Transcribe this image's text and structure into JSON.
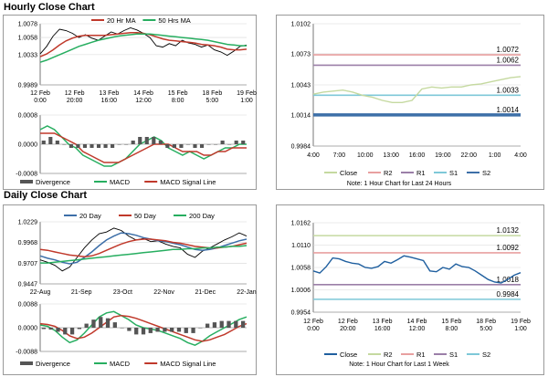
{
  "hourly_section": {
    "title": "Hourly Close Chart"
  },
  "daily_section": {
    "title": "Daily Close Chart"
  },
  "chart_data": [
    {
      "id": "hourly_price",
      "type": "line",
      "ylim": [
        0.9989,
        1.0078
      ],
      "yticks": [
        "1.0078",
        "1.0058",
        "1.0033",
        "0.9989"
      ],
      "ytick_values": [
        1.0078,
        1.0058,
        1.0033,
        0.9989
      ],
      "x_labels": [
        "12 Feb\n0:00",
        "12 Feb\n20:00",
        "13 Feb\n16:00",
        "14 Feb\n12:00",
        "15 Feb\n8:00",
        "18 Feb\n5:00",
        "19 Feb\n1:00"
      ],
      "legend": [
        {
          "name": "20 Hr MA",
          "color": "#c0392b"
        },
        {
          "name": "50 Hrs MA",
          "color": "#27ae60"
        }
      ],
      "series": [
        {
          "name": "Close",
          "color": "#000000",
          "values": [
            1.0034,
            1.0045,
            1.006,
            1.007,
            1.0068,
            1.0064,
            1.0058,
            1.0062,
            1.0057,
            1.0054,
            1.006,
            1.0066,
            1.0063,
            1.0068,
            1.0072,
            1.0069,
            1.0064,
            1.0058,
            1.0046,
            1.0044,
            1.0049,
            1.0046,
            1.0054,
            1.005,
            1.0048,
            1.0044,
            1.0047,
            1.004,
            1.0037,
            1.0032,
            1.0038,
            1.0045,
            1.0047
          ]
        },
        {
          "name": "20 Hr MA",
          "color": "#c0392b",
          "values": [
            1.003,
            1.0034,
            1.004,
            1.0047,
            1.0053,
            1.0057,
            1.006,
            1.0061,
            1.0061,
            1.0061,
            1.0061,
            1.0062,
            1.0063,
            1.0064,
            1.0065,
            1.0065,
            1.0064,
            1.0062,
            1.0059,
            1.0056,
            1.0054,
            1.0053,
            1.0052,
            1.0051,
            1.005,
            1.0048,
            1.0047,
            1.0046,
            1.0044,
            1.0041,
            1.004,
            1.004,
            1.0041
          ]
        },
        {
          "name": "50 Hrs MA",
          "color": "#27ae60",
          "values": [
            1.0022,
            1.0025,
            1.0029,
            1.0033,
            1.0037,
            1.0041,
            1.0045,
            1.0048,
            1.0051,
            1.0054,
            1.0056,
            1.0058,
            1.006,
            1.0061,
            1.0062,
            1.0063,
            1.0063,
            1.0063,
            1.0062,
            1.0061,
            1.006,
            1.0059,
            1.0058,
            1.0057,
            1.0056,
            1.0055,
            1.0054,
            1.0052,
            1.005,
            1.0048,
            1.0047,
            1.0046,
            1.0046
          ]
        }
      ]
    },
    {
      "id": "hourly_macd",
      "type": "line",
      "ylim": [
        -0.0008,
        0.0008
      ],
      "yticks": [
        "0.0008",
        "0.0000",
        "-0.0008"
      ],
      "ytick_values": [
        0.0008,
        0.0,
        -0.0008
      ],
      "legend": [
        {
          "name": "Divergence",
          "color": "#555555"
        },
        {
          "name": "MACD",
          "color": "#27ae60"
        },
        {
          "name": "MACD Signal Line",
          "color": "#c0392b"
        }
      ],
      "series": [
        {
          "name": "MACD",
          "color": "#27ae60",
          "values": [
            0.0004,
            0.0005,
            0.0004,
            0.0002,
            0.0,
            -0.0001,
            -0.0003,
            -0.0004,
            -0.0005,
            -0.0006,
            -0.0006,
            -0.0005,
            -0.0004,
            -0.0002,
            0.0,
            0.0001,
            0.0002,
            0.0001,
            -0.0001,
            -0.0002,
            -0.0003,
            -0.0002,
            -0.0003,
            -0.0004,
            -0.0003,
            -0.0002,
            -0.0001,
            -0.0001,
            0.0,
            0.0
          ]
        },
        {
          "name": "MACD Signal Line",
          "color": "#c0392b",
          "values": [
            0.0003,
            0.0003,
            0.0003,
            0.0002,
            0.0001,
            0.0,
            -0.0002,
            -0.0003,
            -0.0004,
            -0.0005,
            -0.0005,
            -0.0005,
            -0.0004,
            -0.0003,
            -0.0002,
            -0.0001,
            0.0,
            0.0,
            0.0,
            -0.0001,
            -0.0002,
            -0.0002,
            -0.0002,
            -0.0003,
            -0.0003,
            -0.0002,
            -0.0002,
            -0.0001,
            -0.0001,
            -0.0001
          ]
        },
        {
          "name": "Divergence",
          "color": "#555555",
          "type": "bar",
          "values": [
            0.0001,
            0.0002,
            0.0001,
            0.0,
            -0.0001,
            -0.0001,
            -0.0001,
            -0.0001,
            -0.0001,
            -0.0001,
            -0.0001,
            0.0,
            0.0,
            0.0001,
            0.0002,
            0.0002,
            0.0002,
            0.0001,
            -0.0001,
            -0.0001,
            -0.0001,
            0.0,
            -0.0001,
            -0.0001,
            0.0,
            0.0,
            0.0001,
            0.0,
            0.0001,
            0.0001
          ]
        }
      ]
    },
    {
      "id": "hourly_pivot",
      "type": "line",
      "ylim": [
        0.9984,
        1.0102
      ],
      "yticks": [
        "1.0102",
        "1.0073",
        "1.0043",
        "1.0014",
        "0.9984"
      ],
      "ytick_values": [
        1.0102,
        1.0073,
        1.0043,
        1.0014,
        0.9984
      ],
      "x_labels": [
        "4:00",
        "7:00",
        "10:00",
        "13:00",
        "16:00",
        "19:00",
        "22:00",
        "1:00",
        "4:00"
      ],
      "levels": [
        {
          "name": "R2",
          "value": 1.0072,
          "label": "1.0072",
          "color": "#e8a0a0"
        },
        {
          "name": "R1",
          "value": 1.0062,
          "label": "1.0062",
          "color": "#9b7fa8"
        },
        {
          "name": "S1",
          "value": 1.0033,
          "label": "1.0033",
          "color": "#7ec8d8"
        },
        {
          "name": "S2",
          "value": 1.0014,
          "label": "1.0014",
          "color": "#3d6fa8"
        }
      ],
      "series": [
        {
          "name": "Close",
          "color": "#c5d9a0",
          "values": [
            1.0034,
            1.0036,
            1.0037,
            1.0038,
            1.0036,
            1.0033,
            1.0031,
            1.0028,
            1.0026,
            1.0026,
            1.0028,
            1.0039,
            1.0041,
            1.004,
            1.0041,
            1.0041,
            1.0043,
            1.0044,
            1.0046,
            1.0048,
            1.005,
            1.0051
          ]
        }
      ],
      "legend": [
        {
          "name": "Close",
          "color": "#c5d9a0"
        },
        {
          "name": "R2",
          "color": "#e8a0a0"
        },
        {
          "name": "R1",
          "color": "#9b7fa8"
        },
        {
          "name": "S1",
          "color": "#7ec8d8"
        },
        {
          "name": "S2",
          "color": "#3d6fa8"
        }
      ],
      "note": "Note: 1 Hour Chart for Last 24 Hours"
    },
    {
      "id": "daily_price",
      "type": "line",
      "ylim": [
        0.9447,
        1.0229
      ],
      "yticks": [
        "1.0229",
        "0.9968",
        "0.9707",
        "0.9447"
      ],
      "ytick_values": [
        1.0229,
        0.9968,
        0.9707,
        0.9447
      ],
      "x_labels": [
        "22-Aug",
        "21-Sep",
        "23-Oct",
        "22-Nov",
        "21-Dec",
        "22-Jan"
      ],
      "legend": [
        {
          "name": "20 Day",
          "color": "#3d6fa8"
        },
        {
          "name": "50 Day",
          "color": "#c0392b"
        },
        {
          "name": "200 Day",
          "color": "#27ae60"
        }
      ],
      "series": [
        {
          "name": "Close",
          "color": "#000000",
          "values": [
            0.975,
            0.972,
            0.968,
            0.961,
            0.966,
            0.978,
            0.99,
            1.0,
            1.008,
            1.01,
            1.015,
            1.012,
            1.005,
            1.0,
            1.002,
            0.998,
            0.999,
            0.995,
            0.992,
            0.99,
            0.982,
            0.978,
            0.986,
            0.99,
            0.995,
            1.0,
            1.004,
            1.009,
            1.005
          ]
        },
        {
          "name": "20 Day",
          "color": "#3d6fa8",
          "values": [
            0.98,
            0.977,
            0.975,
            0.972,
            0.97,
            0.972,
            0.978,
            0.985,
            0.993,
            1.0,
            1.005,
            1.009,
            1.008,
            1.006,
            1.003,
            1.001,
            0.999,
            0.998,
            0.996,
            0.994,
            0.991,
            0.988,
            0.987,
            0.988,
            0.99,
            0.993,
            0.996,
            0.999,
            1.001
          ]
        },
        {
          "name": "50 Day",
          "color": "#c0392b",
          "values": [
            0.988,
            0.987,
            0.985,
            0.983,
            0.981,
            0.98,
            0.979,
            0.98,
            0.983,
            0.987,
            0.991,
            0.995,
            0.998,
            1.0,
            1.001,
            1.001,
            1.0,
            0.999,
            0.997,
            0.996,
            0.994,
            0.992,
            0.991,
            0.99,
            0.99,
            0.991,
            0.992,
            0.994,
            0.996
          ]
        },
        {
          "name": "200 Day",
          "color": "#27ae60",
          "values": [
            0.971,
            0.971,
            0.972,
            0.973,
            0.974,
            0.975,
            0.976,
            0.977,
            0.978,
            0.979,
            0.98,
            0.981,
            0.982,
            0.983,
            0.984,
            0.985,
            0.986,
            0.987,
            0.988,
            0.988,
            0.989,
            0.989,
            0.99,
            0.99,
            0.991,
            0.991,
            0.992,
            0.992,
            0.993
          ]
        }
      ]
    },
    {
      "id": "daily_macd",
      "type": "line",
      "ylim": [
        -0.0088,
        0.0088
      ],
      "yticks": [
        "0.0088",
        "0.0000",
        "-0.0088"
      ],
      "ytick_values": [
        0.0088,
        0.0,
        -0.0088
      ],
      "legend": [
        {
          "name": "Divergence",
          "color": "#555555"
        },
        {
          "name": "MACD",
          "color": "#27ae60"
        },
        {
          "name": "MACD Signal Line",
          "color": "#c0392b"
        }
      ],
      "series": [
        {
          "name": "MACD",
          "color": "#27ae60",
          "values": [
            0.001,
            0.0005,
            -0.001,
            -0.0035,
            -0.0055,
            -0.0045,
            -0.002,
            0.001,
            0.004,
            0.0055,
            0.006,
            0.0045,
            0.003,
            0.001,
            0.0,
            -0.0005,
            -0.001,
            -0.002,
            -0.003,
            -0.004,
            -0.0055,
            -0.0065,
            -0.005,
            -0.003,
            -0.0015,
            0.0,
            0.0015,
            0.003,
            0.004
          ]
        },
        {
          "name": "MACD Signal Line",
          "color": "#c0392b",
          "values": [
            0.0015,
            0.0012,
            0.0005,
            -0.001,
            -0.003,
            -0.004,
            -0.0035,
            -0.002,
            0.0,
            0.002,
            0.004,
            0.0045,
            0.0042,
            0.0035,
            0.0025,
            0.0015,
            0.0005,
            -0.0005,
            -0.0015,
            -0.0025,
            -0.0035,
            -0.0045,
            -0.005,
            -0.0045,
            -0.0035,
            -0.0025,
            -0.001,
            0.0005,
            0.0015
          ]
        },
        {
          "name": "Divergence",
          "color": "#555555",
          "type": "bar",
          "values": [
            -0.0005,
            -0.0007,
            -0.0015,
            -0.0025,
            -0.0025,
            -0.0005,
            0.0015,
            0.003,
            0.004,
            0.0035,
            0.002,
            0.0,
            -0.0012,
            -0.0025,
            -0.0025,
            -0.002,
            -0.0015,
            -0.0015,
            -0.0015,
            -0.0015,
            -0.002,
            -0.002,
            0.0,
            0.0015,
            0.002,
            0.0025,
            0.0025,
            0.0025,
            0.0025
          ]
        }
      ]
    },
    {
      "id": "daily_pivot",
      "type": "line",
      "ylim": [
        0.9954,
        1.0162
      ],
      "yticks": [
        "1.0162",
        "1.0110",
        "1.0058",
        "1.0006",
        "0.9954"
      ],
      "ytick_values": [
        1.0162,
        1.011,
        1.0058,
        1.0006,
        0.9954
      ],
      "x_labels": [
        "12 Feb\n0:00",
        "12 Feb\n20:00",
        "13 Feb\n16:00",
        "14 Feb\n12:00",
        "15 Feb\n8:00",
        "18 Feb\n5:00",
        "19 Feb\n1:00"
      ],
      "levels": [
        {
          "name": "R2",
          "value": 1.0132,
          "label": "1.0132",
          "color": "#c5d9a0"
        },
        {
          "name": "R1",
          "value": 1.0092,
          "label": "1.0092",
          "color": "#e8a0a0"
        },
        {
          "name": "S1",
          "value": 1.0018,
          "label": "1.0018",
          "color": "#9b7fa8"
        },
        {
          "name": "S2",
          "value": 0.9984,
          "label": "0.9984",
          "color": "#7ec8d8"
        }
      ],
      "series": [
        {
          "name": "Close",
          "color": "#1f5f9f",
          "values": [
            1.005,
            1.0045,
            1.006,
            1.008,
            1.0078,
            1.0072,
            1.0068,
            1.0066,
            1.0058,
            1.0056,
            1.006,
            1.0072,
            1.0068,
            1.0076,
            1.0085,
            1.0082,
            1.0078,
            1.0074,
            1.005,
            1.0048,
            1.0058,
            1.0054,
            1.0066,
            1.006,
            1.0058,
            1.005,
            1.004,
            1.003,
            1.0024,
            1.0022,
            1.003,
            1.004,
            1.0046
          ]
        }
      ],
      "legend": [
        {
          "name": "Close",
          "color": "#1f5f9f"
        },
        {
          "name": "R2",
          "color": "#c5d9a0"
        },
        {
          "name": "R1",
          "color": "#e8a0a0"
        },
        {
          "name": "S1",
          "color": "#9b7fa8"
        },
        {
          "name": "S2",
          "color": "#7ec8d8"
        }
      ],
      "note": "Note: 1 Hour Chart for Last 1 Week"
    }
  ]
}
